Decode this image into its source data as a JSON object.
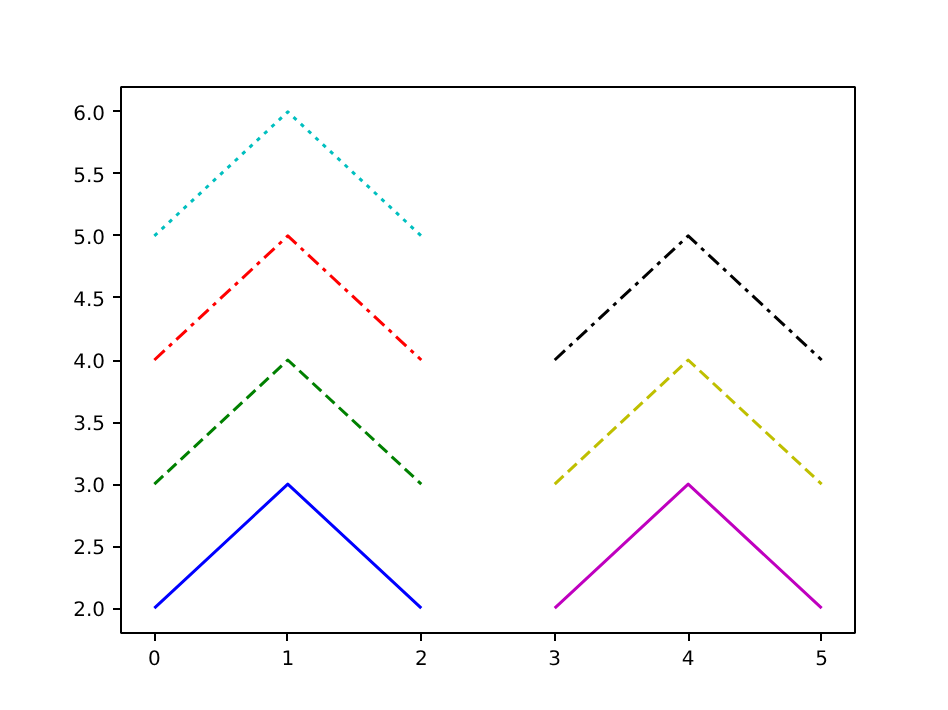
{
  "chart_data": {
    "type": "line",
    "xlim": [
      -0.25,
      5.25
    ],
    "ylim": [
      1.8,
      6.2
    ],
    "xticks": [
      0,
      1,
      2,
      3,
      4,
      5
    ],
    "yticks": [
      {
        "value": 2,
        "label": "2.0"
      },
      {
        "value": 2.5,
        "label": "2.5"
      },
      {
        "value": 3,
        "label": "3.0"
      },
      {
        "value": 3.5,
        "label": "3.5"
      },
      {
        "value": 4,
        "label": "4.0"
      },
      {
        "value": 4.5,
        "label": "4.5"
      },
      {
        "value": 5,
        "label": "5.0"
      },
      {
        "value": 5.5,
        "label": "5.5"
      },
      {
        "value": 6,
        "label": "6.0"
      }
    ],
    "grid": false,
    "marker": "none",
    "series": [
      {
        "x": [
          0,
          1,
          2
        ],
        "values": [
          2,
          3,
          2
        ],
        "color": "#0000ff",
        "line_style": "solid"
      },
      {
        "x": [
          0,
          1,
          2
        ],
        "values": [
          3,
          4,
          3
        ],
        "color": "#008000",
        "line_style": "dashed"
      },
      {
        "x": [
          0,
          1,
          2
        ],
        "values": [
          4,
          5,
          4
        ],
        "color": "#ff0000",
        "line_style": "dashdot"
      },
      {
        "x": [
          0,
          1,
          2
        ],
        "values": [
          5,
          6,
          5
        ],
        "color": "#00bfbf",
        "line_style": "dotted"
      },
      {
        "x": [
          3,
          4,
          5
        ],
        "values": [
          2,
          3,
          2
        ],
        "color": "#bf00bf",
        "line_style": "solid"
      },
      {
        "x": [
          3,
          4,
          5
        ],
        "values": [
          3,
          4,
          3
        ],
        "color": "#bfbf00",
        "line_style": "dashed"
      },
      {
        "x": [
          3,
          4,
          5
        ],
        "values": [
          4,
          5,
          4
        ],
        "color": "#000000",
        "line_style": "dashdot"
      }
    ]
  }
}
